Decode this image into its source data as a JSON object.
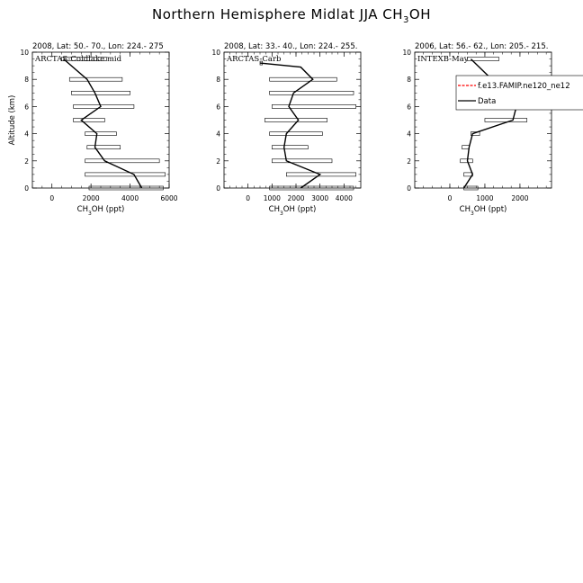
{
  "title": {
    "pre": "Northern Hemisphere Midlat JJA CH",
    "sub": "3",
    "post": "OH"
  },
  "chart_data": [
    {
      "type": "line",
      "header": "2008, Lat:  50.- 70., Lon: 224.- 275",
      "campaign": "ARCTAS-Coldlake mid",
      "xlim": [
        -1000,
        6000
      ],
      "xticks": [
        0,
        2000,
        4000,
        6000
      ],
      "xlabel": {
        "pre": "CH",
        "sub": "3",
        "post": "OH (ppt)"
      },
      "ylabel": "Altitude (km)",
      "ylim": [
        0,
        10
      ],
      "yticks": [
        0,
        2,
        4,
        6,
        8,
        10
      ],
      "series": [
        {
          "name": "Data",
          "x": [
            4600,
            4200,
            2700,
            2200,
            2300,
            1500,
            2500,
            2200,
            1800,
            600
          ],
          "y": [
            0,
            1,
            2,
            3,
            4,
            5,
            6,
            7,
            8,
            9.5
          ]
        }
      ],
      "ranges": [
        {
          "y": 0,
          "min": 1900,
          "max": 5700
        },
        {
          "y": 1,
          "min": 1700,
          "max": 5800
        },
        {
          "y": 2,
          "min": 1700,
          "max": 5500
        },
        {
          "y": 3,
          "min": 1800,
          "max": 3500
        },
        {
          "y": 4,
          "min": 1700,
          "max": 3300
        },
        {
          "y": 5,
          "min": 1100,
          "max": 2700
        },
        {
          "y": 6,
          "min": 1100,
          "max": 4200
        },
        {
          "y": 7,
          "min": 1000,
          "max": 4000
        },
        {
          "y": 8,
          "min": 900,
          "max": 3600
        },
        {
          "y": 9.5,
          "min": 500,
          "max": 2800
        }
      ]
    },
    {
      "type": "line",
      "header": "2008, Lat:  33.- 40., Lon: 224.- 255.",
      "campaign": "ARCTAS-Carb",
      "xlim": [
        -1000,
        4700
      ],
      "xticks": [
        0,
        1000,
        2000,
        3000,
        4000
      ],
      "xlabel": {
        "pre": "CH",
        "sub": "3",
        "post": "OH (ppt)"
      },
      "ylim": [
        0,
        10
      ],
      "yticks": [
        0,
        2,
        4,
        6,
        8,
        10
      ],
      "series": [
        {
          "name": "Data",
          "x": [
            2200,
            3000,
            1600,
            1500,
            1600,
            2100,
            1700,
            1900,
            2700,
            2200,
            500
          ],
          "y": [
            0,
            1,
            2,
            3,
            4,
            5,
            6,
            7,
            8,
            8.9,
            9.2
          ]
        }
      ],
      "ranges": [
        {
          "y": 0,
          "min": 900,
          "max": 4400
        },
        {
          "y": 1,
          "min": 1600,
          "max": 4500
        },
        {
          "y": 2,
          "min": 1000,
          "max": 3500
        },
        {
          "y": 3,
          "min": 1000,
          "max": 2500
        },
        {
          "y": 4,
          "min": 900,
          "max": 3100
        },
        {
          "y": 5,
          "min": 700,
          "max": 3300
        },
        {
          "y": 6,
          "min": 1000,
          "max": 4500
        },
        {
          "y": 7,
          "min": 900,
          "max": 4400
        },
        {
          "y": 8,
          "min": 900,
          "max": 3700
        },
        {
          "y": 9.2,
          "min": 500,
          "max": 600
        }
      ]
    },
    {
      "type": "line",
      "header": "2006, Lat: 56.- 62., Lon: 205.- 215.",
      "campaign": "INTEXB-May",
      "xlim": [
        -1000,
        2900
      ],
      "xticks": [
        0,
        1000,
        2000
      ],
      "xlabel": {
        "pre": "CH",
        "sub": "3",
        "post": "OH (ppt)"
      },
      "ylim": [
        0,
        10
      ],
      "yticks": [
        0,
        2,
        4,
        6,
        8,
        10
      ],
      "series": [
        {
          "name": "Data",
          "x": [
            400,
            650,
            500,
            550,
            650,
            1800,
            1900,
            1300,
            1200,
            600
          ],
          "y": [
            0,
            1,
            2,
            3,
            4,
            5,
            6,
            7,
            8,
            9.5
          ]
        }
      ],
      "ranges": [
        {
          "y": 0,
          "min": 400,
          "max": 800
        },
        {
          "y": 1,
          "min": 400,
          "max": 650
        },
        {
          "y": 2,
          "min": 300,
          "max": 650
        },
        {
          "y": 3,
          "min": 350,
          "max": 550
        },
        {
          "y": 4,
          "min": 600,
          "max": 850
        },
        {
          "y": 5,
          "min": 1000,
          "max": 2200
        },
        {
          "y": 6,
          "min": 1400,
          "max": 2800
        },
        {
          "y": 7,
          "min": 1100,
          "max": 1600
        },
        {
          "y": 8,
          "min": 700,
          "max": 1900
        },
        {
          "y": 9.5,
          "min": 500,
          "max": 1400
        }
      ],
      "legend": {
        "entries": [
          {
            "label": "f.e13.FAMIP.ne120_ne12",
            "color": "#ff0000",
            "dash": "dashed"
          },
          {
            "label": "Data",
            "color": "#000000",
            "dash": "solid"
          }
        ]
      }
    }
  ]
}
